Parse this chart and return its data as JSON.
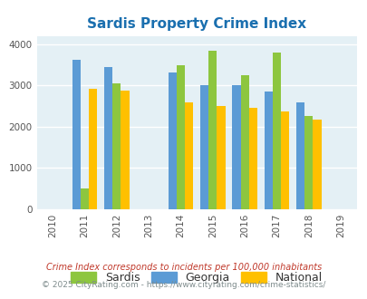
{
  "title": "Sardis Property Crime Index",
  "title_color": "#1a6faf",
  "years": [
    2010,
    2011,
    2012,
    2013,
    2014,
    2015,
    2016,
    2017,
    2018,
    2019
  ],
  "data_years": [
    2011,
    2012,
    2014,
    2015,
    2016,
    2017,
    2018
  ],
  "sardis": [
    500,
    3040,
    3500,
    3850,
    3250,
    3800,
    2260
  ],
  "georgia": [
    3620,
    3440,
    3310,
    3010,
    3010,
    2860,
    2580
  ],
  "national": [
    2920,
    2870,
    2600,
    2510,
    2460,
    2380,
    2180
  ],
  "sardis_color": "#8dc63f",
  "georgia_color": "#5b9bd5",
  "national_color": "#ffc000",
  "bg_color": "#e4f0f5",
  "ylim": [
    0,
    4200
  ],
  "yticks": [
    0,
    1000,
    2000,
    3000,
    4000
  ],
  "bar_width": 0.26,
  "legend_labels": [
    "Sardis",
    "Georgia",
    "National"
  ],
  "footnote1": "Crime Index corresponds to incidents per 100,000 inhabitants",
  "footnote2": "© 2025 CityRating.com - https://www.cityrating.com/crime-statistics/",
  "footnote1_color": "#c0392b",
  "footnote2_color": "#7f8c8d"
}
